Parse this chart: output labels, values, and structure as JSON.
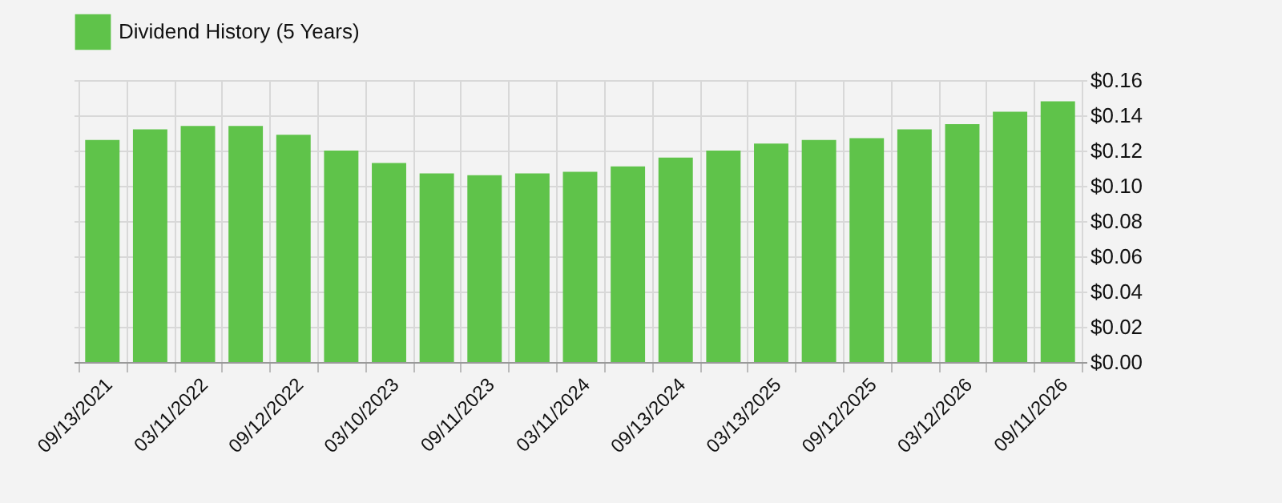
{
  "chart_data": {
    "type": "bar",
    "categories": [
      "09/13/2021",
      null,
      "03/11/2022",
      null,
      "09/12/2022",
      null,
      "03/10/2023",
      null,
      "09/11/2023",
      null,
      "03/11/2024",
      null,
      "09/13/2024",
      null,
      "03/13/2025",
      null,
      "09/12/2025",
      null,
      "03/12/2026",
      null,
      "09/11/2026"
    ],
    "series": [
      {
        "name": "Dividend History (5 Years)",
        "color": "#5fc34a",
        "values": [
          0.126,
          0.132,
          0.134,
          0.134,
          0.129,
          0.12,
          0.113,
          0.107,
          0.106,
          0.107,
          0.108,
          0.111,
          0.116,
          0.12,
          0.124,
          0.126,
          0.127,
          0.132,
          0.135,
          0.142,
          0.148
        ]
      }
    ],
    "ylim": [
      0,
      0.16
    ],
    "yticks": [
      {
        "value": 0,
        "label": "$0.00"
      },
      {
        "value": 0.02,
        "label": "$0.02"
      },
      {
        "value": 0.04,
        "label": "$0.04"
      },
      {
        "value": 0.06,
        "label": "$0.06"
      },
      {
        "value": 0.08,
        "label": "$0.08"
      },
      {
        "value": 0.1,
        "label": "$0.10"
      },
      {
        "value": 0.12,
        "label": "$0.12"
      },
      {
        "value": 0.14,
        "label": "$0.14"
      },
      {
        "value": 0.16,
        "label": "$0.16"
      }
    ],
    "grid": true,
    "legend": "top"
  }
}
